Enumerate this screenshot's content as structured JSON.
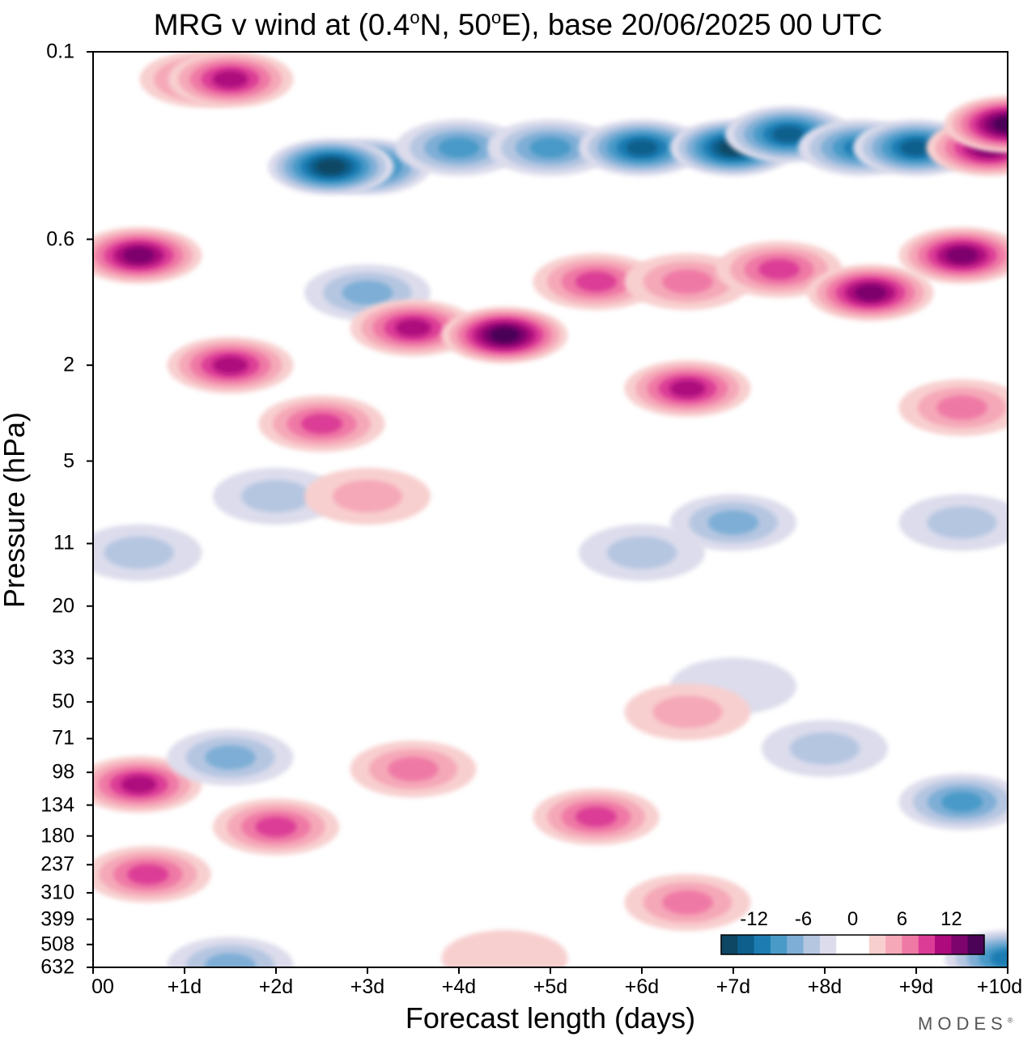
{
  "chart_data": {
    "type": "heatmap",
    "title": {
      "prefix": "MRG v wind at (0.4",
      "deg1": "o",
      "mid": "N, 50",
      "deg2": "o",
      "suffix": "E),  base 20/06/2025  00 UTC"
    },
    "xlabel": "Forecast length (days)",
    "ylabel": "Pressure (hPa)",
    "x_ticks": [
      "00",
      "+1d",
      "+2d",
      "+3d",
      "+4d",
      "+5d",
      "+6d",
      "+7d",
      "+8d",
      "+9d",
      "+10d"
    ],
    "xlim": [
      0,
      10
    ],
    "y_ticks": [
      "0.1",
      "0.6",
      "2",
      "5",
      "11",
      "20",
      "33",
      "50",
      "71",
      "98",
      "134",
      "180",
      "237",
      "310",
      "399",
      "508",
      "632"
    ],
    "ylim": [
      0.1,
      632
    ],
    "y_scale": "log (inverted)",
    "colorbar": {
      "ticks": [
        "-12",
        "-6",
        "0",
        "6",
        "12"
      ],
      "levels": [
        -14,
        -12,
        -10,
        -8,
        -6,
        -4,
        -2,
        0,
        2,
        4,
        6,
        8,
        10,
        12,
        14
      ],
      "colors": [
        "#0d4763",
        "#0e5f8c",
        "#1d7db3",
        "#4a9ac8",
        "#7eaed6",
        "#b5c6e1",
        "#dcdcec",
        "#ffffff",
        "#ffffff",
        "#f8cfcf",
        "#f5a8b8",
        "#ef79a5",
        "#dc3c96",
        "#ae0a7e",
        "#7d046d",
        "#4a0356"
      ],
      "placement": "bottom-right"
    },
    "blobs": [
      {
        "x": 1.2,
        "y": 0.13,
        "v": 8
      },
      {
        "x": 1.5,
        "y": 0.13,
        "v": 10
      },
      {
        "x": 3.0,
        "y": 0.3,
        "v": -12
      },
      {
        "x": 2.6,
        "y": 0.3,
        "v": -14
      },
      {
        "x": 4.0,
        "y": 0.25,
        "v": -8
      },
      {
        "x": 5.0,
        "y": 0.25,
        "v": -8
      },
      {
        "x": 6.0,
        "y": 0.25,
        "v": -12
      },
      {
        "x": 7.0,
        "y": 0.25,
        "v": -14
      },
      {
        "x": 7.6,
        "y": 0.22,
        "v": -12
      },
      {
        "x": 8.4,
        "y": 0.25,
        "v": -10
      },
      {
        "x": 9.0,
        "y": 0.25,
        "v": -12
      },
      {
        "x": 9.8,
        "y": 0.25,
        "v": 12
      },
      {
        "x": 10.0,
        "y": 0.2,
        "v": 14
      },
      {
        "x": 0.5,
        "y": 0.7,
        "v": 12
      },
      {
        "x": 3.0,
        "y": 1.0,
        "v": -6
      },
      {
        "x": 3.5,
        "y": 1.4,
        "v": 10
      },
      {
        "x": 4.5,
        "y": 1.5,
        "v": 14
      },
      {
        "x": 5.5,
        "y": 0.9,
        "v": 8
      },
      {
        "x": 6.5,
        "y": 0.9,
        "v": 6
      },
      {
        "x": 7.5,
        "y": 0.8,
        "v": 8
      },
      {
        "x": 8.5,
        "y": 1.0,
        "v": 12
      },
      {
        "x": 9.5,
        "y": 0.7,
        "v": 12
      },
      {
        "x": 1.5,
        "y": 2.0,
        "v": 10
      },
      {
        "x": 2.5,
        "y": 3.5,
        "v": 8
      },
      {
        "x": 6.5,
        "y": 2.5,
        "v": 10
      },
      {
        "x": 9.5,
        "y": 3.0,
        "v": 6
      },
      {
        "x": 2.0,
        "y": 7.0,
        "v": -4
      },
      {
        "x": 3.0,
        "y": 7.0,
        "v": 4
      },
      {
        "x": 7.0,
        "y": 9.0,
        "v": -6
      },
      {
        "x": 9.5,
        "y": 9.0,
        "v": -4
      },
      {
        "x": 0.5,
        "y": 12,
        "v": -4
      },
      {
        "x": 6.0,
        "y": 12,
        "v": -4
      },
      {
        "x": 0.5,
        "y": 110,
        "v": 10
      },
      {
        "x": 3.5,
        "y": 95,
        "v": 6
      },
      {
        "x": 1.5,
        "y": 85,
        "v": -6
      },
      {
        "x": 2.0,
        "y": 165,
        "v": 8
      },
      {
        "x": 5.5,
        "y": 150,
        "v": 8
      },
      {
        "x": 0.6,
        "y": 260,
        "v": 8
      },
      {
        "x": 6.5,
        "y": 340,
        "v": 6
      },
      {
        "x": 9.5,
        "y": 130,
        "v": -8
      },
      {
        "x": 8.0,
        "y": 78,
        "v": -4
      },
      {
        "x": 7.0,
        "y": 43,
        "v": -2
      },
      {
        "x": 10.0,
        "y": 580,
        "v": -10
      },
      {
        "x": 1.5,
        "y": 620,
        "v": -6
      },
      {
        "x": 6.5,
        "y": 55,
        "v": 4
      },
      {
        "x": 4.5,
        "y": 580,
        "v": 2
      }
    ]
  }
}
